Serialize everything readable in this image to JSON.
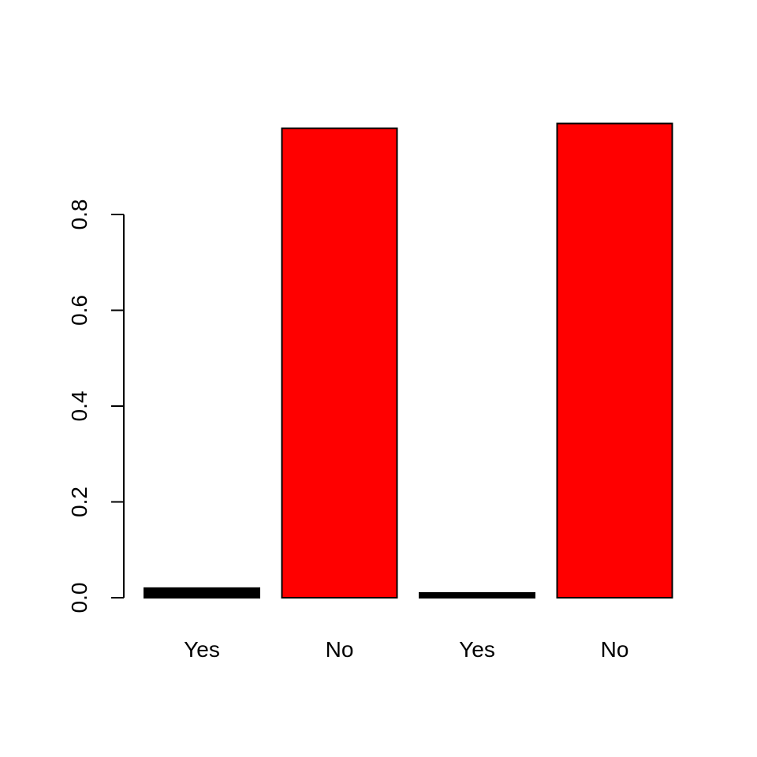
{
  "chart_data": {
    "type": "bar",
    "categories": [
      "Yes",
      "No",
      "Yes",
      "No"
    ],
    "values": [
      0.02,
      0.98,
      0.01,
      0.99
    ],
    "bar_colors": [
      "#000000",
      "#ff0000",
      "#000000",
      "#ff0000"
    ],
    "y_ticks": [
      0.0,
      0.2,
      0.4,
      0.6,
      0.8
    ],
    "y_tick_labels": [
      "0.0",
      "0.2",
      "0.4",
      "0.6",
      "0.8"
    ],
    "ylim": [
      0,
      1
    ],
    "title": "",
    "xlabel": "",
    "ylabel": "",
    "grid": false,
    "legend": "none"
  }
}
